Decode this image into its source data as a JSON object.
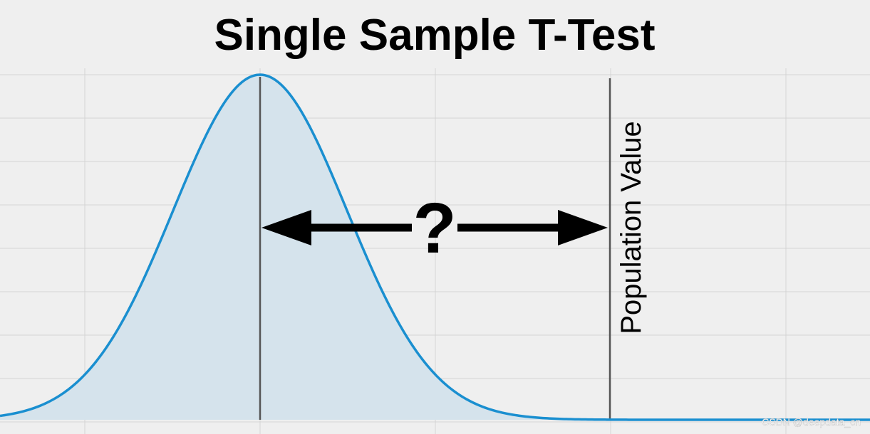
{
  "title": "Single Sample T-Test",
  "question": "?",
  "reference_label": "Population Value",
  "watermark": "CSDN @deepdata_cn"
}
